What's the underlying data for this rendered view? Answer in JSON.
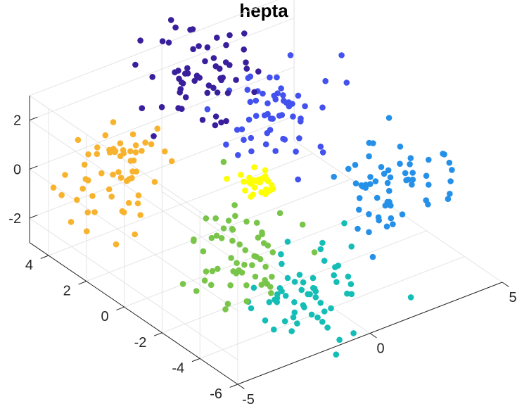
{
  "chart_data": {
    "type": "scatter",
    "projection": "3d",
    "title": "hepta",
    "xlabel": "",
    "ylabel": "",
    "zlabel": "",
    "grid": true,
    "legend": "none",
    "xlim": [
      -5,
      5
    ],
    "ylim": [
      -6,
      5
    ],
    "zlim": [
      -3,
      3
    ],
    "x_ticks": [
      -5,
      0,
      5
    ],
    "y_ticks": [
      -6,
      -4,
      -2,
      0,
      2,
      4
    ],
    "z_ticks": [
      -2,
      0,
      2
    ],
    "series": [
      {
        "color": "#feff00",
        "center": [
          0,
          0,
          0
        ],
        "spread": 0.3,
        "count": 32
      },
      {
        "color": "#f8b32e",
        "center": [
          -3,
          3,
          0
        ],
        "spread": 0.9,
        "count": 60
      },
      {
        "color": "#3a1f9d",
        "center": [
          0,
          3,
          3
        ],
        "spread": 0.9,
        "count": 60
      },
      {
        "color": "#4351ef",
        "center": [
          3,
          3,
          0
        ],
        "spread": 0.9,
        "count": 58
      },
      {
        "color": "#2590e8",
        "center": [
          3,
          -3,
          0
        ],
        "spread": 0.9,
        "count": 60
      },
      {
        "color": "#14bdb6",
        "center": [
          0,
          -3,
          -3
        ],
        "spread": 0.9,
        "count": 60
      },
      {
        "color": "#79c549",
        "center": [
          -3,
          -3,
          0
        ],
        "spread": 0.9,
        "count": 60
      }
    ]
  }
}
